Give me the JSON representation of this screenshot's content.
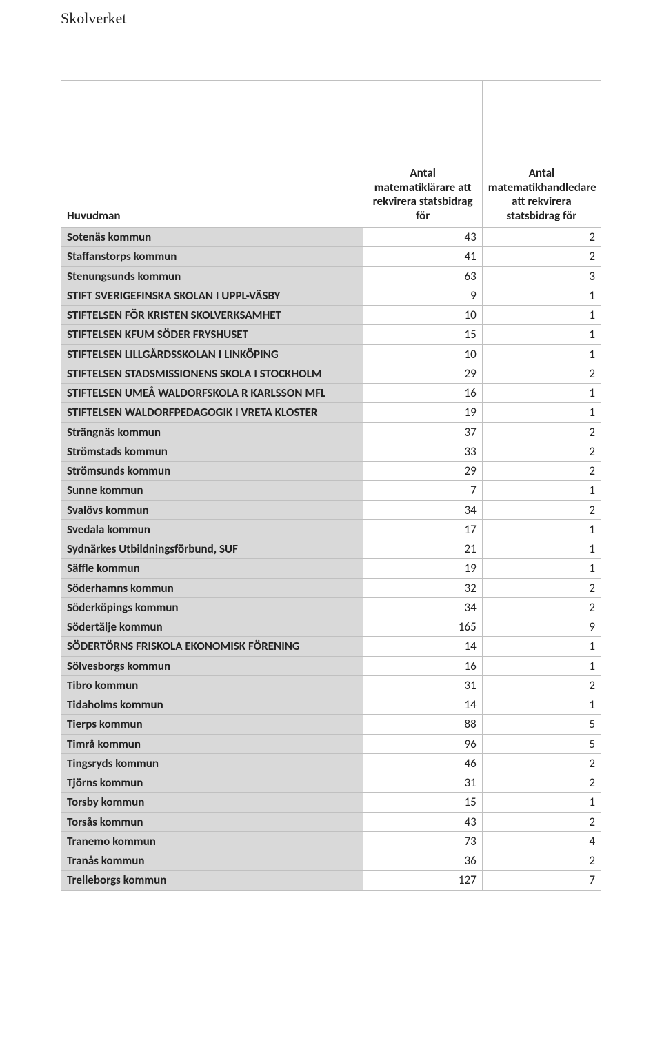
{
  "brand": "Skolverket",
  "table": {
    "columns": [
      "Huvudman",
      "Antal matematiklärare att rekvirera statsbidrag för",
      "Antal  matematikhandledare att rekvirera statsbidrag för"
    ],
    "header_row_height": 200,
    "colors": {
      "band_bg": "#d9d9d9",
      "border": "#c0c0c0",
      "text": "#222222",
      "page_bg": "#ffffff"
    },
    "fonts": {
      "brand_family": "Garamond",
      "table_family": "Calibri",
      "brand_size_pt": 16,
      "cell_size_pt": 13,
      "header_size_pt": 13
    },
    "col_widths_pct": [
      56,
      22,
      22
    ],
    "rows": [
      {
        "name": "Sotenäs kommun",
        "a": 43,
        "b": 2
      },
      {
        "name": "Staffanstorps kommun",
        "a": 41,
        "b": 2
      },
      {
        "name": "Stenungsunds kommun",
        "a": 63,
        "b": 3
      },
      {
        "name": "STIFT SVERIGEFINSKA SKOLAN I UPPL-VÄSBY",
        "a": 9,
        "b": 1
      },
      {
        "name": "STIFTELSEN FÖR KRISTEN SKOLVERKSAMHET",
        "a": 10,
        "b": 1
      },
      {
        "name": "STIFTELSEN KFUM SÖDER FRYSHUSET",
        "a": 15,
        "b": 1
      },
      {
        "name": "STIFTELSEN LILLGÅRDSSKOLAN I LINKÖPING",
        "a": 10,
        "b": 1
      },
      {
        "name": "STIFTELSEN STADSMISSIONENS SKOLA I STOCKHOLM",
        "a": 29,
        "b": 2
      },
      {
        "name": "STIFTELSEN UMEÅ WALDORFSKOLA R KARLSSON MFL",
        "a": 16,
        "b": 1
      },
      {
        "name": "STIFTELSEN WALDORFPEDAGOGIK I VRETA KLOSTER",
        "a": 19,
        "b": 1
      },
      {
        "name": "Strängnäs kommun",
        "a": 37,
        "b": 2
      },
      {
        "name": "Strömstads kommun",
        "a": 33,
        "b": 2
      },
      {
        "name": "Strömsunds kommun",
        "a": 29,
        "b": 2
      },
      {
        "name": "Sunne kommun",
        "a": 7,
        "b": 1
      },
      {
        "name": "Svalövs kommun",
        "a": 34,
        "b": 2
      },
      {
        "name": "Svedala kommun",
        "a": 17,
        "b": 1
      },
      {
        "name": "Sydnärkes Utbildningsförbund, SUF",
        "a": 21,
        "b": 1
      },
      {
        "name": "Säffle kommun",
        "a": 19,
        "b": 1
      },
      {
        "name": "Söderhamns kommun",
        "a": 32,
        "b": 2
      },
      {
        "name": "Söderköpings kommun",
        "a": 34,
        "b": 2
      },
      {
        "name": "Södertälje kommun",
        "a": 165,
        "b": 9
      },
      {
        "name": "SÖDERTÖRNS FRISKOLA EKONOMISK FÖRENING",
        "a": 14,
        "b": 1
      },
      {
        "name": "Sölvesborgs kommun",
        "a": 16,
        "b": 1
      },
      {
        "name": "Tibro kommun",
        "a": 31,
        "b": 2
      },
      {
        "name": "Tidaholms kommun",
        "a": 14,
        "b": 1
      },
      {
        "name": "Tierps kommun",
        "a": 88,
        "b": 5
      },
      {
        "name": "Timrå kommun",
        "a": 96,
        "b": 5
      },
      {
        "name": "Tingsryds kommun",
        "a": 46,
        "b": 2
      },
      {
        "name": "Tjörns kommun",
        "a": 31,
        "b": 2
      },
      {
        "name": "Torsby kommun",
        "a": 15,
        "b": 1
      },
      {
        "name": "Torsås kommun",
        "a": 43,
        "b": 2
      },
      {
        "name": "Tranemo kommun",
        "a": 73,
        "b": 4
      },
      {
        "name": "Tranås kommun",
        "a": 36,
        "b": 2
      },
      {
        "name": "Trelleborgs kommun",
        "a": 127,
        "b": 7
      }
    ]
  }
}
